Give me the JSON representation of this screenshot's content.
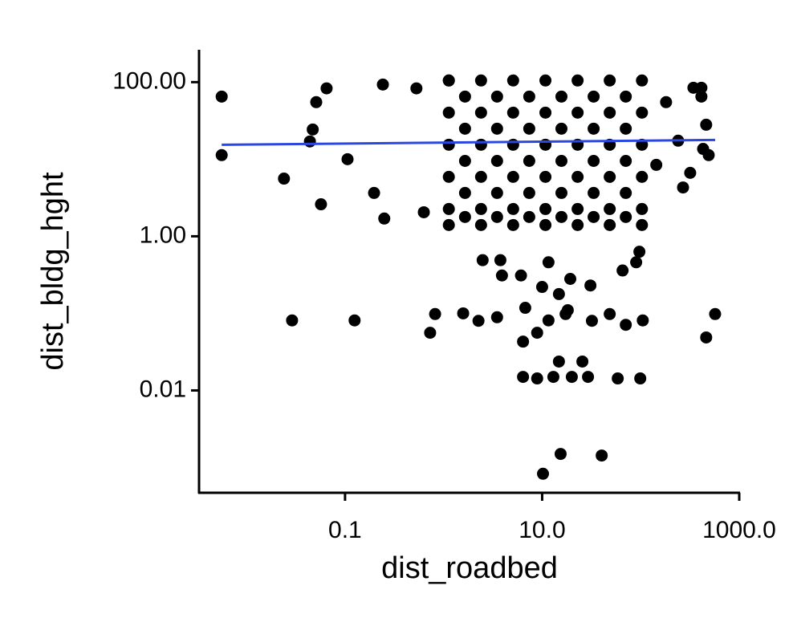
{
  "chart_data": {
    "type": "scatter",
    "x_label": "dist_roadbed",
    "y_label": "dist_bldg_hght",
    "x_log": true,
    "y_log": true,
    "color": "#000000",
    "xlim": [
      0.0033,
      1000
    ],
    "ylim": [
      0.00047,
      263
    ],
    "xticks": [
      0.1,
      {
        "value": 10,
        "label": "10.0"
      },
      {
        "value": 1000,
        "label": "1000.0"
      }
    ],
    "yticks": [
      {
        "value": 100,
        "label": "100.00"
      },
      {
        "value": 1,
        "label": "1.00"
      },
      0.01
    ],
    "x": [
      0.0056,
      0.0056,
      0.024,
      0.057,
      0.029,
      0.125,
      0.73,
      0.82,
      1.58,
      2.49,
      3.77,
      3.91,
      6.1,
      6.74,
      8.9,
      6.4,
      8.9,
      13.0,
      14.8,
      25.6,
      20.0,
      29.2,
      58.5,
      99,
      10.2,
      15.4,
      40.2,
      462,
      569,
      10,
      17.3,
      19.3,
      30.9,
      48.5,
      65.5,
      90,
      97,
      105,
      70.6,
      32,
      11.6,
      14.8,
      6.4,
      18.2,
      3.49,
      2.26,
      11.6,
      0.242,
      0.065,
      0.051,
      343,
      413,
      413,
      462,
      490,
      269,
      318,
      430,
      0.25,
      0.63,
      0.197,
      0.106,
      0.044,
      0.047,
      0.53,
      1.13,
      181,
      240,
      144,
      1.13,
      1.13,
      1.13,
      1.13,
      1.13,
      1.13,
      2.4,
      2.4,
      2.4,
      2.4,
      2.4,
      2.4,
      5.08,
      5.08,
      5.08,
      5.08,
      5.08,
      5.08,
      10.8,
      10.8,
      10.8,
      10.8,
      10.8,
      10.8,
      22.9,
      22.9,
      22.9,
      22.9,
      22.9,
      22.9,
      48.5,
      48.5,
      48.5,
      48.5,
      48.5,
      48.5,
      103,
      103,
      103,
      103,
      103,
      103,
      1.65,
      1.65,
      1.65,
      1.65,
      1.65,
      3.49,
      3.49,
      3.49,
      3.49,
      3.49,
      7.4,
      7.4,
      7.4,
      7.4,
      7.4,
      15.7,
      15.7,
      15.7,
      15.7,
      15.7,
      33.3,
      33.3,
      33.3,
      33.3,
      33.3,
      70.6,
      70.6,
      70.6,
      70.6,
      70.6
    ],
    "y": [
      64.9,
      11.3,
      5.6,
      2.6,
      0.081,
      0.081,
      0.056,
      0.098,
      0.1,
      0.49,
      0.49,
      0.31,
      0.31,
      0.118,
      0.056,
      0.015,
      0.0143,
      0.015,
      0.0237,
      0.0237,
      0.015,
      0.015,
      0.0143,
      0.0143,
      0.00083,
      0.0015,
      0.00143,
      0.0487,
      0.098,
      0.22,
      0.098,
      0.28,
      0.23,
      0.098,
      0.36,
      0.46,
      0.63,
      0.081,
      0.071,
      0.08,
      0.46,
      0.178,
      0.043,
      0.11,
      0.089,
      0.08,
      0.081,
      93,
      83,
      55,
      84.5,
      84.5,
      64.9,
      28,
      11.3,
      4.3,
      6.65,
      13.6,
      1.7,
      2.05,
      3.65,
      10,
      17,
      24.3,
      83,
      105,
      55,
      17.4,
      8.45,
      105,
      40.2,
      15.4,
      5.9,
      2.26,
      1.4,
      105,
      40.2,
      15.4,
      5.9,
      2.26,
      1.4,
      105,
      40.2,
      15.4,
      5.9,
      2.26,
      1.4,
      105,
      40.2,
      15.4,
      5.9,
      2.26,
      1.4,
      105,
      40.2,
      15.4,
      5.9,
      2.26,
      1.4,
      105,
      40.2,
      15.4,
      5.9,
      2.26,
      1.4,
      105,
      40.2,
      15.4,
      5.9,
      2.26,
      1.4,
      64.9,
      24.9,
      9.5,
      3.65,
      1.78,
      64.9,
      24.9,
      9.5,
      3.65,
      1.78,
      64.9,
      24.9,
      9.5,
      3.65,
      1.78,
      64.9,
      24.9,
      9.5,
      3.65,
      1.78,
      64.9,
      24.9,
      9.5,
      3.65,
      1.78,
      64.9,
      24.9,
      9.5,
      3.65,
      1.78
    ],
    "trend_line": {
      "x": [
        0.0056,
        569
      ],
      "y": [
        15.4,
        17.8
      ],
      "color": "#2a47e0"
    }
  }
}
